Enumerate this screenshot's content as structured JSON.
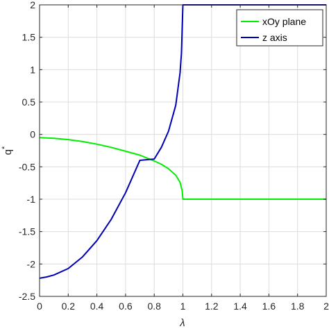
{
  "chart_data": {
    "type": "line",
    "xlabel": "λ",
    "ylabel": "q",
    "ylabel_superscript": "*",
    "xlim": [
      0,
      2
    ],
    "ylim": [
      -2.5,
      2
    ],
    "xticks": [
      "0",
      "0.2",
      "0.4",
      "0.6",
      "0.8",
      "1",
      "1.2",
      "1.4",
      "1.6",
      "1.8",
      "2"
    ],
    "yticks": [
      "2",
      "1.5",
      "1",
      "0.5",
      "0",
      "-0.5",
      "-1",
      "-1.5",
      "-2",
      "-2.5"
    ],
    "grid": true,
    "legend_position": "top-right",
    "series": [
      {
        "name": "xOy plane",
        "color": "#00ee00",
        "x": [
          0,
          0.1,
          0.2,
          0.3,
          0.4,
          0.5,
          0.6,
          0.7,
          0.8,
          0.85,
          0.9,
          0.95,
          0.98,
          0.995,
          1.0,
          1.1,
          1.2,
          1.4,
          1.6,
          1.8,
          2.0
        ],
        "y": [
          -0.05,
          -0.06,
          -0.08,
          -0.11,
          -0.15,
          -0.2,
          -0.26,
          -0.32,
          -0.41,
          -0.46,
          -0.53,
          -0.63,
          -0.74,
          -0.87,
          -1.0,
          -1.0,
          -1.0,
          -1.0,
          -1.0,
          -1.0,
          -1.0
        ]
      },
      {
        "name": "z axis",
        "color": "#0000b3",
        "x": [
          0,
          0.05,
          0.1,
          0.2,
          0.3,
          0.4,
          0.5,
          0.6,
          0.7,
          0.8,
          0.85,
          0.9,
          0.95,
          0.98,
          0.99,
          1.0,
          1.2,
          1.4,
          1.6,
          1.8,
          2.0
        ],
        "y": [
          -2.22,
          -2.2,
          -2.17,
          -2.07,
          -1.89,
          -1.64,
          -1.31,
          -0.9,
          -0.4,
          -0.38,
          -0.2,
          0.05,
          0.45,
          0.95,
          1.25,
          2.0,
          2.0,
          2.0,
          2.0,
          2.0,
          2.0
        ]
      }
    ]
  }
}
